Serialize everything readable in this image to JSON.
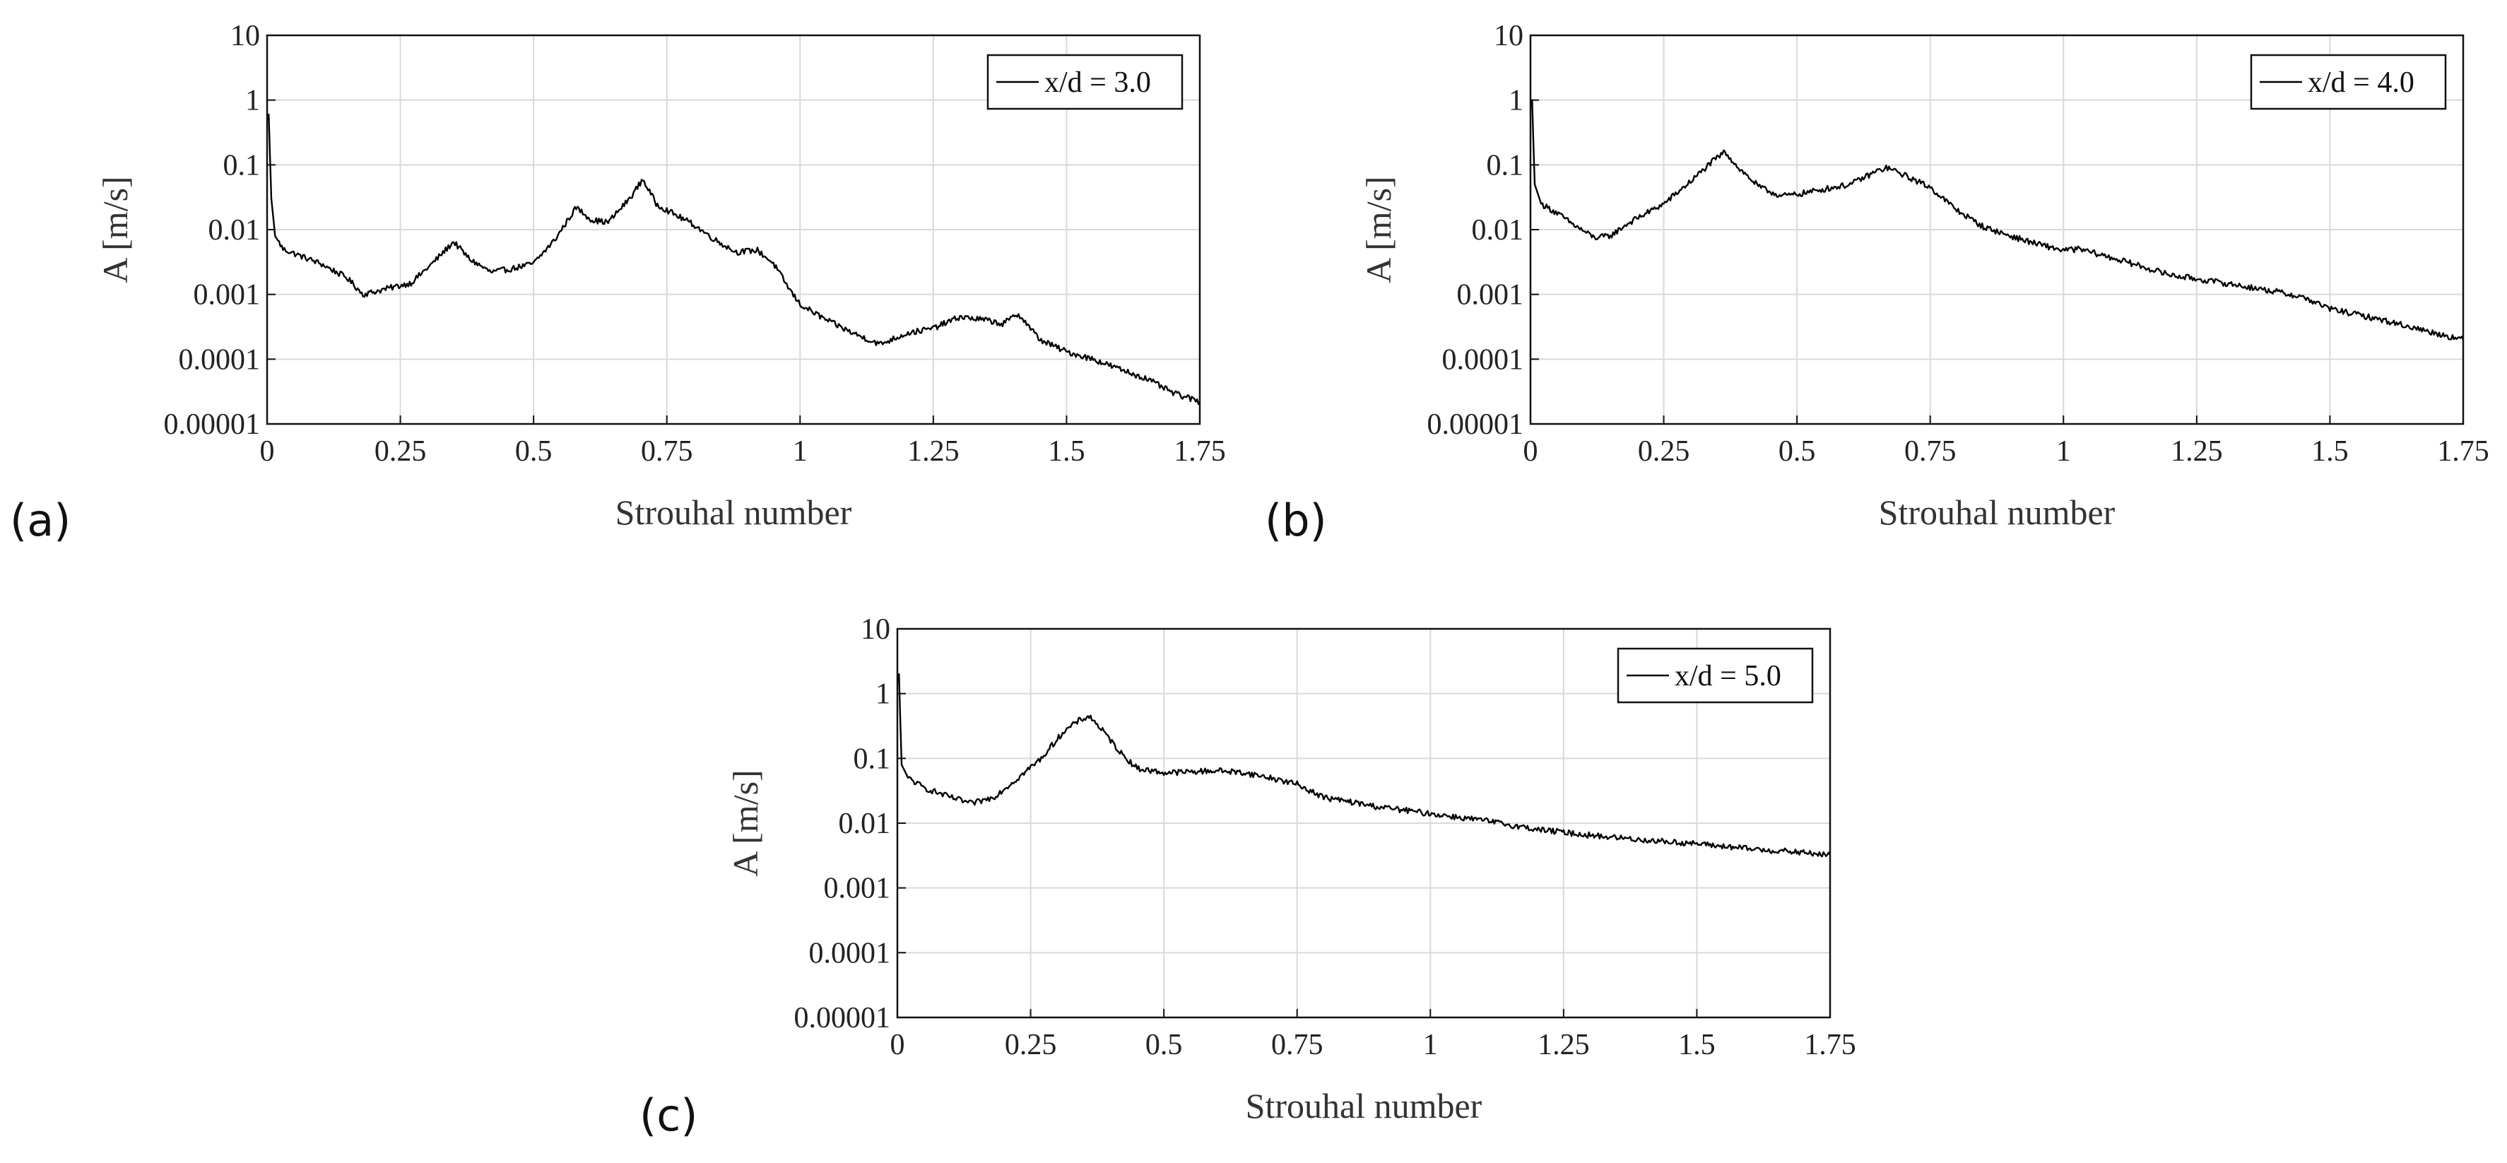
{
  "figure": {
    "panel_labels": [
      "(a)",
      "(b)",
      "(c)"
    ]
  },
  "chart_data": [
    {
      "type": "line",
      "panel": "(a)",
      "title": "",
      "xlabel": "Strouhal number",
      "ylabel": "A [m/s]",
      "xlim": [
        0,
        1.75
      ],
      "ylim": [
        1e-05,
        10
      ],
      "yscale": "log",
      "grid": true,
      "legend_position": "top-right",
      "x_ticks": [
        0,
        0.25,
        0.5,
        0.75,
        1,
        1.25,
        1.5,
        1.75
      ],
      "x_tick_labels": [
        "0",
        "0.25",
        "0.5",
        "0.75",
        "1",
        "1.25",
        "1.5",
        "1.75"
      ],
      "y_ticks": [
        1e-05,
        0.0001,
        0.001,
        0.01,
        0.1,
        1,
        10
      ],
      "y_tick_labels": [
        "0.00001",
        "0.0001",
        "0.001",
        "0.01",
        "0.1",
        "1",
        "10"
      ],
      "series": [
        {
          "name": "x/d = 3.0",
          "x": [
            0,
            0.003,
            0.008,
            0.015,
            0.03,
            0.06,
            0.1,
            0.15,
            0.18,
            0.22,
            0.27,
            0.31,
            0.35,
            0.38,
            0.42,
            0.46,
            0.5,
            0.54,
            0.58,
            0.61,
            0.64,
            0.68,
            0.705,
            0.73,
            0.76,
            0.8,
            0.84,
            0.88,
            0.92,
            0.95,
            0.98,
            1.0,
            1.05,
            1.1,
            1.15,
            1.2,
            1.25,
            1.3,
            1.35,
            1.38,
            1.41,
            1.45,
            1.5,
            1.55,
            1.6,
            1.65,
            1.7,
            1.75
          ],
          "values": [
            0.5,
            0.6,
            0.03,
            0.008,
            0.005,
            0.004,
            0.003,
            0.0018,
            0.001,
            0.0012,
            0.0015,
            0.003,
            0.0065,
            0.0035,
            0.0022,
            0.0025,
            0.003,
            0.007,
            0.022,
            0.014,
            0.013,
            0.03,
            0.06,
            0.025,
            0.018,
            0.012,
            0.007,
            0.0045,
            0.0048,
            0.003,
            0.0012,
            0.0007,
            0.0004,
            0.00025,
            0.00017,
            0.00025,
            0.0003,
            0.00045,
            0.0004,
            0.00035,
            0.0005,
            0.0002,
            0.00013,
            0.0001,
            7e-05,
            5e-05,
            3e-05,
            2.2e-05
          ]
        }
      ]
    },
    {
      "type": "line",
      "panel": "(b)",
      "title": "",
      "xlabel": "Strouhal number",
      "ylabel": "A [m/s]",
      "xlim": [
        0,
        1.75
      ],
      "ylim": [
        1e-05,
        10
      ],
      "yscale": "log",
      "grid": true,
      "legend_position": "top-right",
      "x_ticks": [
        0,
        0.25,
        0.5,
        0.75,
        1,
        1.25,
        1.5,
        1.75
      ],
      "x_tick_labels": [
        "0",
        "0.25",
        "0.5",
        "0.75",
        "1",
        "1.25",
        "1.5",
        "1.75"
      ],
      "y_ticks": [
        1e-05,
        0.0001,
        0.001,
        0.01,
        0.1,
        1,
        10
      ],
      "y_tick_labels": [
        "0.00001",
        "0.0001",
        "0.001",
        "0.01",
        "0.1",
        "1",
        "10"
      ],
      "series": [
        {
          "name": "x/d = 4.0",
          "x": [
            0,
            0.003,
            0.008,
            0.02,
            0.05,
            0.08,
            0.12,
            0.15,
            0.18,
            0.2,
            0.25,
            0.3,
            0.34,
            0.365,
            0.39,
            0.43,
            0.47,
            0.5,
            0.55,
            0.6,
            0.65,
            0.67,
            0.7,
            0.75,
            0.8,
            0.85,
            0.9,
            0.95,
            1.0,
            1.03,
            1.1,
            1.2,
            1.3,
            1.4,
            1.45,
            1.5,
            1.6,
            1.7,
            1.75
          ],
          "values": [
            0.8,
            1.0,
            0.05,
            0.025,
            0.018,
            0.012,
            0.0075,
            0.008,
            0.012,
            0.015,
            0.025,
            0.055,
            0.11,
            0.16,
            0.09,
            0.045,
            0.033,
            0.035,
            0.042,
            0.05,
            0.08,
            0.09,
            0.07,
            0.045,
            0.02,
            0.011,
            0.008,
            0.006,
            0.0048,
            0.005,
            0.0035,
            0.002,
            0.0015,
            0.0011,
            0.0009,
            0.0006,
            0.0004,
            0.00025,
            0.0002
          ]
        }
      ]
    },
    {
      "type": "line",
      "panel": "(c)",
      "title": "",
      "xlabel": "Strouhal number",
      "ylabel": "A [m/s]",
      "xlim": [
        0,
        1.75
      ],
      "ylim": [
        1e-05,
        10
      ],
      "yscale": "log",
      "grid": true,
      "legend_position": "top-right",
      "x_ticks": [
        0,
        0.25,
        0.5,
        0.75,
        1,
        1.25,
        1.5,
        1.75
      ],
      "x_tick_labels": [
        "0",
        "0.25",
        "0.5",
        "0.75",
        "1",
        "1.25",
        "1.5",
        "1.75"
      ],
      "y_ticks": [
        1e-05,
        0.0001,
        0.001,
        0.01,
        0.1,
        1,
        10
      ],
      "y_tick_labels": [
        "0.00001",
        "0.0001",
        "0.001",
        "0.01",
        "0.1",
        "1",
        "10"
      ],
      "series": [
        {
          "name": "x/d = 5.0",
          "x": [
            0,
            0.003,
            0.008,
            0.02,
            0.05,
            0.1,
            0.14,
            0.18,
            0.22,
            0.27,
            0.31,
            0.34,
            0.36,
            0.38,
            0.42,
            0.45,
            0.5,
            0.55,
            0.6,
            0.65,
            0.7,
            0.75,
            0.8,
            0.9,
            1.0,
            1.1,
            1.2,
            1.3,
            1.4,
            1.5,
            1.6,
            1.7,
            1.75
          ],
          "values": [
            1.5,
            2.0,
            0.08,
            0.05,
            0.035,
            0.025,
            0.02,
            0.025,
            0.045,
            0.1,
            0.25,
            0.38,
            0.45,
            0.3,
            0.12,
            0.07,
            0.06,
            0.062,
            0.065,
            0.06,
            0.05,
            0.04,
            0.025,
            0.018,
            0.014,
            0.011,
            0.008,
            0.0065,
            0.0055,
            0.0048,
            0.004,
            0.0035,
            0.0032
          ]
        }
      ]
    }
  ]
}
